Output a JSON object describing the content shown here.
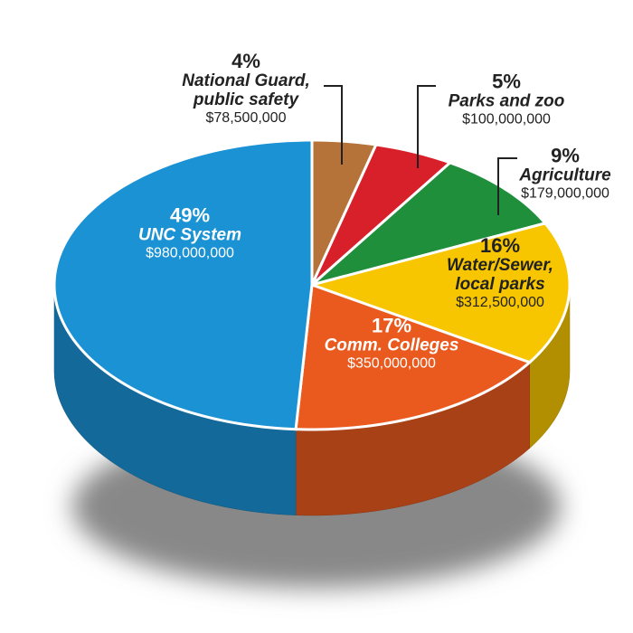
{
  "chart_data": {
    "type": "pie",
    "categories": [
      "National Guard, public safety",
      "Parks and zoo",
      "Agriculture",
      "Water/Sewer, local parks",
      "Comm. Colleges",
      "UNC System"
    ],
    "values": [
      4,
      5,
      9,
      16,
      17,
      49
    ],
    "value_labels": [
      "4%",
      "5%",
      "9%",
      "16%",
      "17%",
      "49%"
    ],
    "amount_labels": [
      "$78,500,000",
      "$100,000,000",
      "$179,000,000",
      "$312,500,000",
      "$350,000,000",
      "$980,000,000"
    ],
    "colors": [
      "#b5733a",
      "#d8202a",
      "#1f8f3c",
      "#f7c600",
      "#ea5a1e",
      "#1b92d4"
    ]
  }
}
